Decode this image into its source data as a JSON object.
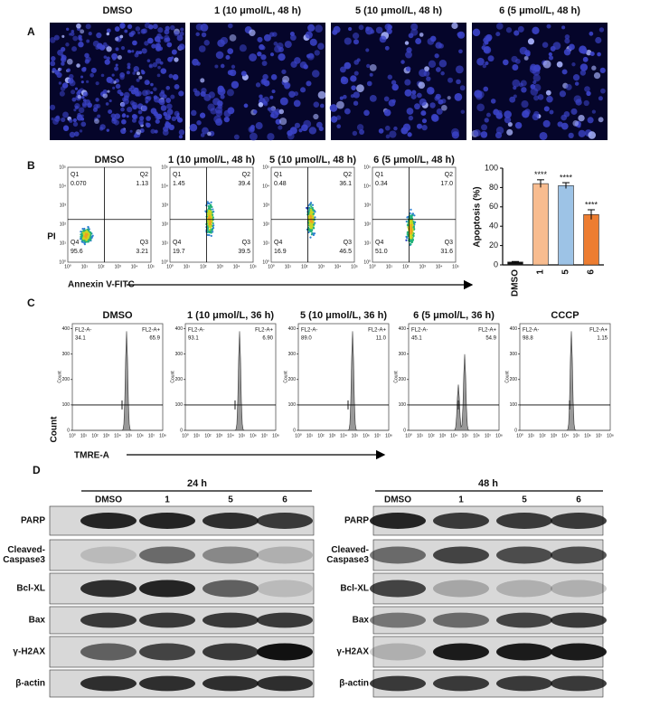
{
  "panel_a": {
    "label": "A",
    "titles": [
      "DMSO",
      "1 (10 μmol/L, 48 h)",
      "5 (10 μmol/L, 48 h)",
      "6 (5 μmol/L, 48 h)"
    ]
  },
  "panel_b": {
    "label": "B",
    "plot_titles": [
      "DMSO",
      "1 (10 μmol/L, 48 h)",
      "5 (10 μmol/L, 48 h)",
      "6 (5 μmol/L, 48 h)"
    ],
    "quadrant_names": [
      "Q1",
      "Q2",
      "Q3",
      "Q4"
    ],
    "quadrant_values": [
      [
        "0.070",
        "1.13",
        "3.21",
        "95.6"
      ],
      [
        "1.45",
        "39.4",
        "39.5",
        "19.7"
      ],
      [
        "0.48",
        "36.1",
        "46.5",
        "16.9"
      ],
      [
        "0.34",
        "17.0",
        "31.6",
        "51.0"
      ]
    ],
    "log_ticks": [
      "10⁰",
      "10¹",
      "10²",
      "10³",
      "10⁴",
      "10⁵"
    ],
    "y_axis_label": "PI",
    "x_axis_label": "Annexin V-FITC",
    "bar_chart": {
      "type": "bar",
      "y_label": "Apoptosis (%)",
      "categories": [
        "DMSO",
        "1",
        "5",
        "6"
      ],
      "values": [
        3,
        84,
        82,
        52
      ],
      "errors": [
        0.5,
        4,
        3,
        5
      ],
      "colors": [
        "#111111",
        "#f8bc8f",
        "#9dc3e6",
        "#ed7d31"
      ],
      "significance": [
        null,
        "****",
        "****",
        "****"
      ],
      "ylim": [
        0,
        100
      ],
      "yticks": [
        0,
        20,
        40,
        60,
        80,
        100
      ]
    }
  },
  "panel_c": {
    "label": "C",
    "titles": [
      "DMSO",
      "1 (10 μmol/L, 36 h)",
      "5 (10 μmol/L, 36 h)",
      "6 (5 μmol/L, 36 h)",
      "CCCP"
    ],
    "gate_names": [
      "FL2-A-",
      "FL2-A+"
    ],
    "gate_values": [
      [
        "34.1",
        "65.9"
      ],
      [
        "93.1",
        "6.90"
      ],
      [
        "89.0",
        "11.0"
      ],
      [
        "45.1",
        "54.9"
      ],
      [
        "98.8",
        "1.15"
      ]
    ],
    "count_ticks": [
      0,
      100,
      200,
      300,
      400
    ],
    "log_ticks": [
      "10⁰",
      "10¹",
      "10²",
      "10³",
      "10⁴",
      "10⁵",
      "10⁶",
      "10⁷",
      "10⁸"
    ],
    "y_axis_label": "Count",
    "x_axis_label": "TMRE-A"
  },
  "panel_d": {
    "label": "D",
    "blots": [
      {
        "time": "24 h",
        "lanes": [
          "DMSO",
          "1",
          "5",
          "6"
        ]
      },
      {
        "time": "48 h",
        "lanes": [
          "DMSO",
          "1",
          "5",
          "6"
        ]
      }
    ],
    "proteins": [
      [
        "PARP"
      ],
      [
        "Cleaved-",
        "Caspase3"
      ],
      [
        "Bcl-XL"
      ],
      [
        "Bax"
      ],
      [
        "γ-H2AX"
      ],
      [
        "β-actin"
      ]
    ]
  }
}
